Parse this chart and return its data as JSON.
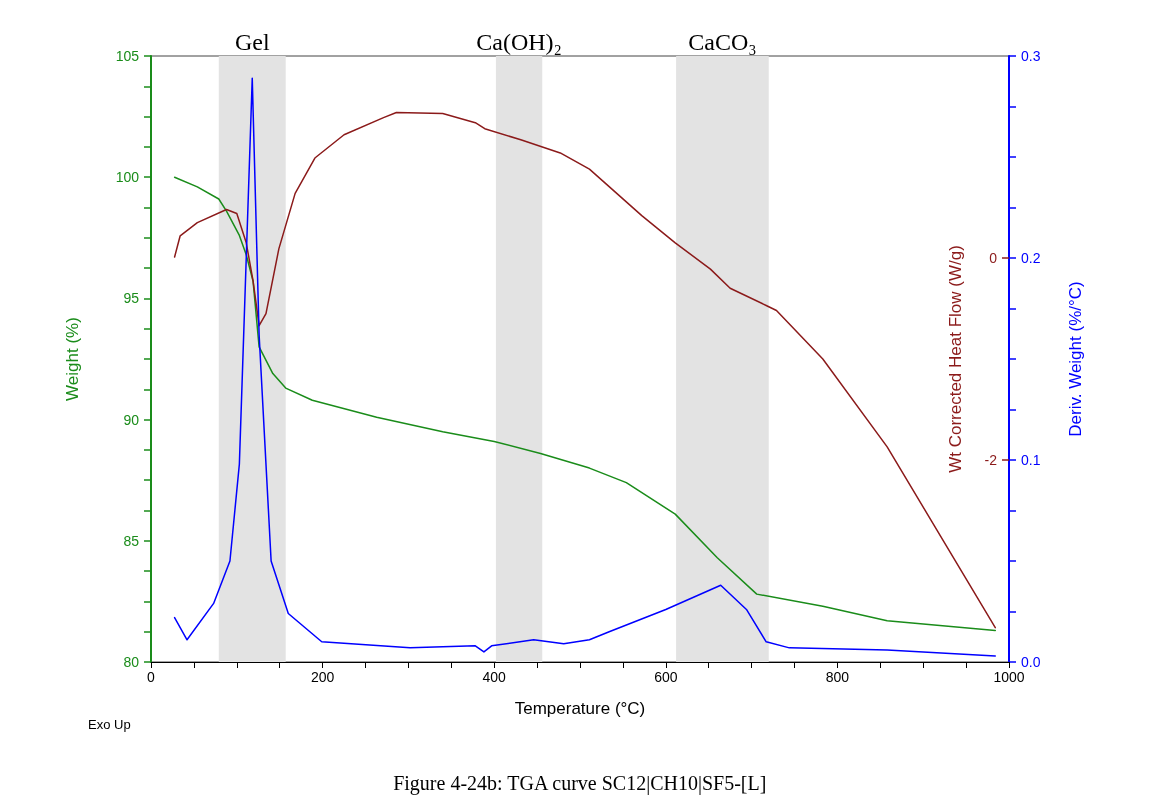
{
  "chart_data": {
    "type": "line",
    "xlabel": "Temperature (°C)",
    "ylabel": "Weight (%)",
    "y2label": "Wt Corrected Heat Flow (W/g)",
    "y3label": "Deriv. Weight (%/°C)",
    "annotations": [
      "Exo Up",
      "Figure 4-24b: TGA curve SC12|CH10|SF5-[L]"
    ],
    "xlim": [
      0,
      1000
    ],
    "xticks": [
      0,
      {
        "value": 50,
        "label": null
      },
      200,
      {
        "value": 100,
        "label": null
      },
      {
        "value": 150,
        "label": null
      },
      {
        "value": 250,
        "label": null
      },
      {
        "value": 300,
        "label": null
      },
      {
        "value": 350,
        "label": null
      },
      400,
      {
        "value": 450,
        "label": null
      },
      {
        "value": 500,
        "label": null
      },
      {
        "value": 550,
        "label": null
      },
      600,
      {
        "value": 650,
        "label": null
      },
      {
        "value": 700,
        "label": null
      },
      {
        "value": 750,
        "label": null
      },
      800,
      {
        "value": 850,
        "label": null
      },
      {
        "value": 900,
        "label": null
      },
      {
        "value": 950,
        "label": null
      },
      1000
    ],
    "ylim": [
      80,
      105
    ],
    "yticks": [
      80,
      {
        "value": 81.25,
        "label": null
      },
      {
        "value": 82.5,
        "label": null
      },
      {
        "value": 83.75,
        "label": null
      },
      85,
      {
        "value": 86.25,
        "label": null
      },
      {
        "value": 87.5,
        "label": null
      },
      {
        "value": 88.75,
        "label": null
      },
      90,
      {
        "value": 91.25,
        "label": null
      },
      {
        "value": 92.5,
        "label": null
      },
      {
        "value": 93.75,
        "label": null
      },
      95,
      {
        "value": 96.25,
        "label": null
      },
      {
        "value": 97.5,
        "label": null
      },
      {
        "value": 98.75,
        "label": null
      },
      100,
      {
        "value": 101.25,
        "label": null
      },
      {
        "value": 102.5,
        "label": null
      },
      {
        "value": 103.75,
        "label": null
      },
      105
    ],
    "y2lim": [
      -4,
      2
    ],
    "y2ticks": [
      -2,
      0
    ],
    "y3lim": [
      0,
      0.3
    ],
    "y3ticks": [
      {
        "value": 0,
        "label": "0.0"
      },
      {
        "value": 0.025,
        "label": null
      },
      {
        "value": 0.05,
        "label": null
      },
      {
        "value": 0.075,
        "label": null
      },
      0.1,
      {
        "value": 0.125,
        "label": null
      },
      {
        "value": 0.15,
        "label": null
      },
      {
        "value": 0.175,
        "label": null
      },
      0.2,
      {
        "value": 0.225,
        "label": null
      },
      {
        "value": 0.25,
        "label": null
      },
      {
        "value": 0.275,
        "label": null
      },
      0.3
    ],
    "grid": false,
    "marker": "none",
    "line_style": "solid",
    "bands": [
      {
        "axis": "x",
        "from": 79,
        "to": 157,
        "label": "Gel",
        "color": "#e3e3e3"
      },
      {
        "axis": "x",
        "from": 402,
        "to": 456,
        "label": "Ca(OH)₂",
        "color": "#e3e3e3"
      },
      {
        "axis": "x",
        "from": 612,
        "to": 720,
        "label": "CaCO₃",
        "color": "#e3e3e3"
      }
    ],
    "series": [
      {
        "color": "#1a8c1a",
        "x": [
          27.5,
          54,
          79,
          88,
          103,
          111,
          119,
          126,
          142,
          157,
          188,
          263,
          340,
          400,
          454,
          511,
          554,
          611,
          660,
          706,
          783,
          858,
          984
        ],
        "values": [
          100.0,
          99.6,
          99.1,
          98.6,
          97.6,
          96.8,
          95.7,
          93.0,
          91.9,
          91.3,
          90.8,
          90.1,
          89.5,
          89.1,
          88.6,
          88.0,
          87.4,
          86.1,
          84.3,
          82.8,
          82.3,
          81.7,
          81.3
        ]
      },
      {
        "color": "#8b1a1a",
        "axis": "y2",
        "x": [
          27.5,
          34,
          54,
          88,
          100,
          111,
          119,
          126,
          134,
          149,
          168,
          191,
          225,
          271,
          286,
          340,
          378,
          389,
          431,
          477,
          511,
          572,
          611,
          652,
          675,
          717,
          729,
          783,
          858,
          984
        ],
        "values": [
          0.01,
          0.22,
          0.35,
          0.48,
          0.44,
          0.15,
          -0.23,
          -0.67,
          -0.55,
          0.09,
          0.64,
          0.99,
          1.22,
          1.39,
          1.44,
          1.43,
          1.34,
          1.28,
          1.17,
          1.04,
          0.88,
          0.42,
          0.15,
          -0.11,
          -0.3,
          -0.47,
          -0.52,
          -1.0,
          -1.87,
          -3.66
        ]
      },
      {
        "color": "#0000ff",
        "axis": "y3",
        "x": [
          27.5,
          42,
          73,
          92,
          103,
          118,
          126,
          140,
          160,
          199,
          302,
          378,
          388,
          397,
          446,
          481,
          511,
          534,
          600,
          664,
          694,
          717,
          744,
          858,
          984
        ],
        "values": [
          0.022,
          0.011,
          0.029,
          0.05,
          0.098,
          0.289,
          0.162,
          0.05,
          0.024,
          0.01,
          0.007,
          0.008,
          0.005,
          0.008,
          0.011,
          0.009,
          0.011,
          0.015,
          0.026,
          0.038,
          0.026,
          0.01,
          0.007,
          0.006,
          0.003
        ]
      }
    ]
  }
}
